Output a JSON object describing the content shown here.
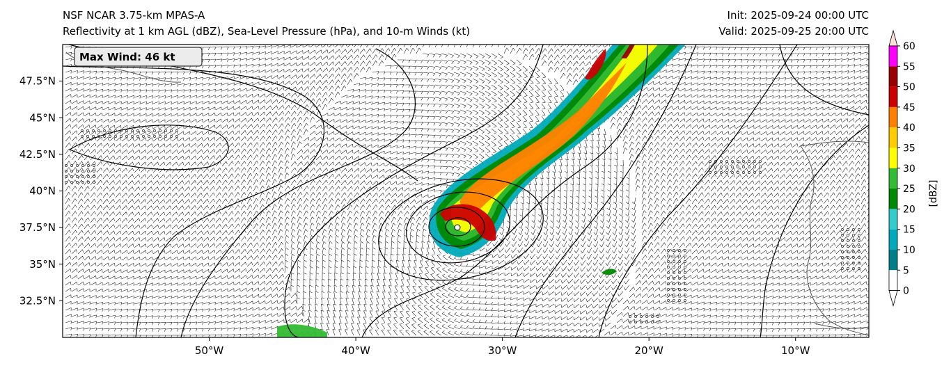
{
  "header": {
    "left_line1": "NSF NCAR 3.75-km MPAS-A",
    "left_line2": "Reflectivity at 1 km AGL (dBZ), Sea-Level Pressure (hPa), and 10-m Winds (kt)",
    "right_line1": "Init: 2025-09-24 00:00 UTC",
    "right_line2": "Valid: 2025-09-25 20:00 UTC"
  },
  "annotation": {
    "max_wind": "Max Wind: 46 kt"
  },
  "axes": {
    "lon_ticks": [
      "50°W",
      "40°W",
      "30°W",
      "20°W",
      "10°W"
    ],
    "lat_ticks": [
      "47.5°N",
      "45°N",
      "42.5°N",
      "40°N",
      "37.5°N",
      "35°N",
      "32.5°N"
    ],
    "lon_range": [
      -60,
      -5
    ],
    "lat_range": [
      30,
      50
    ]
  },
  "colorbar": {
    "label": "[dBZ]",
    "ticks": [
      "60",
      "55",
      "50",
      "45",
      "40",
      "35",
      "30",
      "25",
      "20",
      "15",
      "10",
      "5",
      "0"
    ],
    "colors": [
      "#ff00ff",
      "#990000",
      "#cc0000",
      "#ff7f00",
      "#ffcc00",
      "#ffff00",
      "#33bb33",
      "#008800",
      "#33cccc",
      "#00aabb",
      "#007f8a"
    ],
    "top_extend_color": "#fde0d6",
    "bottom_extend_color": "#ffffff"
  },
  "features": {
    "cyclone_center": {
      "lon": -33.0,
      "lat": 37.4
    },
    "map_elements": [
      "wind-barbs",
      "sea-level-pressure-isobars",
      "reflectivity-band",
      "coastline"
    ]
  }
}
